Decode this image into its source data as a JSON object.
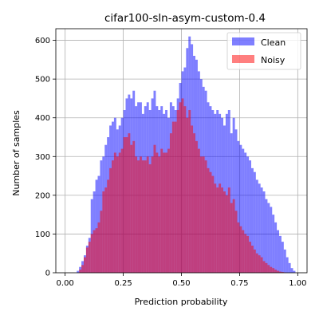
{
  "chart_data": {
    "type": "histogram",
    "title": "cifar100-sln-asym-custom-0.4",
    "xlabel": "Prediction probability",
    "ylabel": "Number of samples",
    "xlim": [
      -0.04,
      1.04
    ],
    "ylim": [
      0,
      630
    ],
    "xticks": [
      0.0,
      0.25,
      0.5,
      0.75,
      1.0
    ],
    "xtick_labels": [
      "0.00",
      "0.25",
      "0.50",
      "0.75",
      "1.00"
    ],
    "yticks": [
      0,
      100,
      200,
      300,
      400,
      500,
      600
    ],
    "ytick_labels": [
      "0",
      "100",
      "200",
      "300",
      "400",
      "500",
      "600"
    ],
    "grid": true,
    "legend_position": "top-right",
    "bin_start": 0.0,
    "bin_width": 0.01,
    "series": [
      {
        "name": "Clean",
        "color": "#0000ff",
        "alpha": 0.5,
        "values": [
          0,
          0,
          0,
          0,
          0,
          5,
          15,
          30,
          45,
          70,
          90,
          190,
          210,
          240,
          250,
          290,
          300,
          330,
          350,
          380,
          390,
          400,
          370,
          380,
          400,
          420,
          450,
          460,
          450,
          470,
          430,
          440,
          440,
          410,
          430,
          440,
          420,
          450,
          470,
          430,
          420,
          430,
          410,
          420,
          400,
          440,
          430,
          420,
          450,
          490,
          520,
          530,
          580,
          610,
          590,
          560,
          550,
          520,
          500,
          480,
          470,
          440,
          430,
          420,
          410,
          420,
          410,
          400,
          380,
          410,
          420,
          360,
          400,
          370,
          340,
          330,
          320,
          310,
          300,
          290,
          270,
          260,
          240,
          230,
          220,
          210,
          190,
          180,
          170,
          150,
          130,
          110,
          95,
          80,
          60,
          40,
          25,
          12,
          5,
          0
        ]
      },
      {
        "name": "Noisy",
        "color": "#ff0000",
        "alpha": 0.5,
        "values": [
          0,
          0,
          0,
          0,
          0,
          0,
          8,
          20,
          40,
          65,
          80,
          100,
          110,
          115,
          130,
          160,
          210,
          220,
          240,
          270,
          290,
          310,
          300,
          310,
          320,
          350,
          350,
          360,
          330,
          340,
          300,
          290,
          300,
          290,
          290,
          300,
          280,
          300,
          330,
          310,
          300,
          320,
          310,
          310,
          320,
          360,
          390,
          390,
          420,
          440,
          450,
          430,
          400,
          420,
          380,
          360,
          340,
          320,
          300,
          300,
          290,
          270,
          260,
          250,
          230,
          220,
          230,
          220,
          210,
          200,
          220,
          180,
          190,
          160,
          130,
          120,
          110,
          100,
          95,
          80,
          70,
          60,
          50,
          45,
          40,
          30,
          25,
          20,
          15,
          12,
          8,
          5,
          3,
          2,
          1,
          0,
          0,
          0,
          0,
          0
        ]
      }
    ]
  }
}
